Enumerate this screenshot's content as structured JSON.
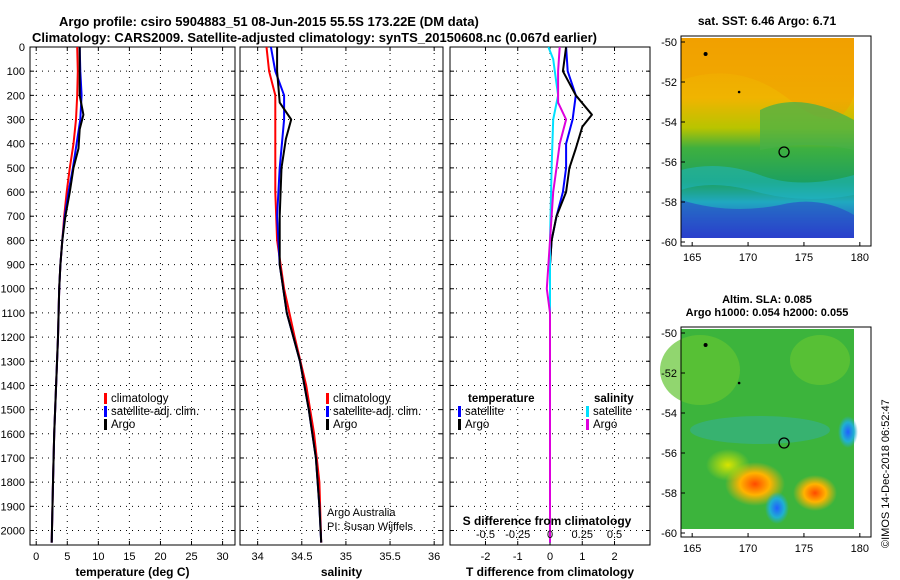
{
  "header": {
    "title_line1": "Argo profile: csiro 5904883_51 08-Jun-2015 55.5S 173.22E (DM data)",
    "title_line2": "Climatology: CARS2009. Satellite-adjusted climatology: synTS_20150608.nc (0.067d earlier)"
  },
  "footer": {
    "credit": "Argo Australia",
    "pi": "PI: Susan Wijffels",
    "stamp": "©IMOS 14-Dec-2018 06:52:47"
  },
  "colors": {
    "climatology": "#ff0000",
    "satellite": "#0000ff",
    "argo": "#000000",
    "sat_s": "#00e0ff",
    "argo_s": "#dd00dd"
  },
  "chart_data": [
    {
      "id": "temperature",
      "type": "line",
      "xlabel": "temperature (deg C)",
      "xlim": [
        -1,
        32
      ],
      "xticks": [
        0,
        5,
        10,
        15,
        20,
        25,
        30
      ],
      "ylim": [
        0,
        2060
      ],
      "yticks": [
        0,
        100,
        200,
        300,
        400,
        500,
        600,
        700,
        800,
        900,
        1000,
        1100,
        1200,
        1300,
        1400,
        1500,
        1600,
        1700,
        1800,
        1900,
        2000
      ],
      "legend": [
        "climatology",
        "satellite-adj. clim.",
        "Argo"
      ],
      "series": [
        {
          "name": "climatology",
          "color": "#ff0000",
          "points": [
            [
              6.6,
              0
            ],
            [
              6.7,
              100
            ],
            [
              6.6,
              200
            ],
            [
              6.4,
              300
            ],
            [
              6.0,
              400
            ],
            [
              5.4,
              500
            ],
            [
              4.9,
              600
            ],
            [
              4.5,
              700
            ],
            [
              4.2,
              800
            ],
            [
              3.9,
              900
            ],
            [
              3.7,
              1000
            ],
            [
              3.5,
              1200
            ],
            [
              3.2,
              1400
            ],
            [
              2.9,
              1600
            ],
            [
              2.7,
              1800
            ],
            [
              2.5,
              2050
            ]
          ]
        },
        {
          "name": "satellite-adj. clim.",
          "color": "#0000ff",
          "points": [
            [
              7.0,
              0
            ],
            [
              7.1,
              100
            ],
            [
              7.3,
              200
            ],
            [
              7.1,
              300
            ],
            [
              6.5,
              400
            ],
            [
              5.9,
              500
            ],
            [
              5.2,
              600
            ],
            [
              4.6,
              700
            ],
            [
              4.2,
              800
            ],
            [
              3.9,
              900
            ],
            [
              3.7,
              1000
            ],
            [
              3.5,
              1200
            ],
            [
              3.2,
              1400
            ],
            [
              2.9,
              1600
            ],
            [
              2.7,
              1800
            ],
            [
              2.5,
              2050
            ]
          ]
        },
        {
          "name": "Argo",
          "color": "#000000",
          "points": [
            [
              7.0,
              0
            ],
            [
              7.0,
              100
            ],
            [
              7.0,
              200
            ],
            [
              7.6,
              280
            ],
            [
              7.0,
              340
            ],
            [
              6.8,
              420
            ],
            [
              6.0,
              500
            ],
            [
              5.4,
              600
            ],
            [
              4.7,
              700
            ],
            [
              4.2,
              800
            ],
            [
              3.9,
              900
            ],
            [
              3.7,
              1000
            ],
            [
              3.5,
              1200
            ],
            [
              3.2,
              1400
            ],
            [
              2.9,
              1600
            ],
            [
              2.7,
              1800
            ],
            [
              2.5,
              2050
            ]
          ]
        }
      ]
    },
    {
      "id": "salinity",
      "type": "line",
      "xlabel": "salinity",
      "xlim": [
        33.8,
        36.1
      ],
      "xticks": [
        34,
        34.5,
        35,
        35.5,
        36
      ],
      "xticklabels": [
        "34",
        "34.5",
        "35",
        "35.5",
        "36"
      ],
      "ylim": [
        0,
        2060
      ],
      "legend": [
        "climatology",
        "satellite-adj. clim.",
        "Argo"
      ],
      "series": [
        {
          "name": "climatology",
          "color": "#ff0000",
          "points": [
            [
              34.1,
              0
            ],
            [
              34.13,
              100
            ],
            [
              34.2,
              200
            ],
            [
              34.2,
              400
            ],
            [
              34.2,
              600
            ],
            [
              34.22,
              800
            ],
            [
              34.3,
              1000
            ],
            [
              34.42,
              1200
            ],
            [
              34.55,
              1400
            ],
            [
              34.64,
              1600
            ],
            [
              34.7,
              1800
            ],
            [
              34.72,
              2050
            ]
          ]
        },
        {
          "name": "satellite-adj. clim.",
          "color": "#0000ff",
          "points": [
            [
              34.15,
              0
            ],
            [
              34.2,
              100
            ],
            [
              34.3,
              200
            ],
            [
              34.3,
              300
            ],
            [
              34.25,
              500
            ],
            [
              34.22,
              700
            ],
            [
              34.25,
              900
            ],
            [
              34.33,
              1100
            ],
            [
              34.48,
              1300
            ],
            [
              34.58,
              1500
            ],
            [
              34.66,
              1700
            ],
            [
              34.7,
              1900
            ],
            [
              34.72,
              2050
            ]
          ]
        },
        {
          "name": "Argo",
          "color": "#000000",
          "points": [
            [
              34.22,
              0
            ],
            [
              34.22,
              100
            ],
            [
              34.25,
              230
            ],
            [
              34.38,
              300
            ],
            [
              34.32,
              380
            ],
            [
              34.27,
              500
            ],
            [
              34.25,
              700
            ],
            [
              34.25,
              900
            ],
            [
              34.33,
              1100
            ],
            [
              34.48,
              1300
            ],
            [
              34.58,
              1500
            ],
            [
              34.66,
              1700
            ],
            [
              34.7,
              1900
            ],
            [
              34.72,
              2050
            ]
          ]
        }
      ]
    },
    {
      "id": "differences",
      "type": "line",
      "xlabel": "T difference from climatology",
      "xlabel_top": "S difference from climatology",
      "xlim": [
        -3.1,
        3.1
      ],
      "xticks": [
        -2,
        -1,
        0,
        1,
        2
      ],
      "s_xticks": [
        -0.5,
        -0.25,
        0,
        0.25,
        0.5
      ],
      "s_xticklabels": [
        "-0.5",
        "-0.25",
        "0",
        "0.25",
        "0.5"
      ],
      "ylim": [
        0,
        2060
      ],
      "legend_left_title": "temperature",
      "legend_right_title": "salinity",
      "legend_left": [
        "satellite",
        "Argo"
      ],
      "legend_right": [
        "satellite",
        "Argo"
      ],
      "series": [
        {
          "name": "temperature satellite",
          "color": "#0000ff",
          "points": [
            [
              0.5,
              0
            ],
            [
              0.55,
              100
            ],
            [
              0.8,
              200
            ],
            [
              0.7,
              300
            ],
            [
              0.5,
              400
            ],
            [
              0.5,
              500
            ],
            [
              0.4,
              600
            ],
            [
              0.2,
              700
            ],
            [
              0.05,
              800
            ],
            [
              0,
              900
            ],
            [
              0,
              2050
            ]
          ]
        },
        {
          "name": "temperature Argo",
          "color": "#000000",
          "points": [
            [
              0.5,
              0
            ],
            [
              0.4,
              100
            ],
            [
              0.8,
              200
            ],
            [
              1.3,
              280
            ],
            [
              1.0,
              330
            ],
            [
              0.8,
              420
            ],
            [
              0.6,
              500
            ],
            [
              0.5,
              600
            ],
            [
              0.2,
              700
            ],
            [
              0.05,
              800
            ],
            [
              0,
              900
            ],
            [
              0,
              2050
            ]
          ]
        },
        {
          "name": "salinity satellite",
          "color": "#00e0ff",
          "points": [
            [
              -0.05,
              0
            ],
            [
              0.1,
              50
            ],
            [
              0.15,
              100
            ],
            [
              0.25,
              200
            ],
            [
              0.1,
              300
            ],
            [
              0.05,
              500
            ],
            [
              0,
              800
            ],
            [
              0,
              2050
            ]
          ]
        },
        {
          "name": "salinity Argo",
          "color": "#dd00dd",
          "points": [
            [
              0.3,
              0
            ],
            [
              0.25,
              100
            ],
            [
              0.25,
              230
            ],
            [
              0.5,
              300
            ],
            [
              0.3,
              400
            ],
            [
              0.2,
              500
            ],
            [
              0.1,
              600
            ],
            [
              0,
              800
            ],
            [
              -0.1,
              1000
            ],
            [
              0,
              1100
            ],
            [
              0,
              2050
            ]
          ]
        }
      ]
    },
    {
      "id": "sst_map",
      "type": "heatmap",
      "title": "sat. SST: 6.46 Argo: 6.71",
      "xlim": [
        164,
        181
      ],
      "ylim": [
        -60.2,
        -49.7
      ],
      "xticks": [
        165,
        170,
        175,
        180
      ],
      "yticks": [
        -50,
        -52,
        -54,
        -56,
        -58,
        -60
      ],
      "float_position": [
        173.22,
        -55.5
      ]
    },
    {
      "id": "sla_map",
      "type": "heatmap",
      "title": "Altim. SLA: 0.085",
      "subtitle": "Argo h1000: 0.054 h2000: 0.055",
      "xlim": [
        164,
        181
      ],
      "ylim": [
        -60.2,
        -49.7
      ],
      "xticks": [
        165,
        170,
        175,
        180
      ],
      "yticks": [
        -50,
        -52,
        -54,
        -56,
        -58,
        -60
      ],
      "float_position": [
        173.22,
        -55.5
      ]
    }
  ]
}
